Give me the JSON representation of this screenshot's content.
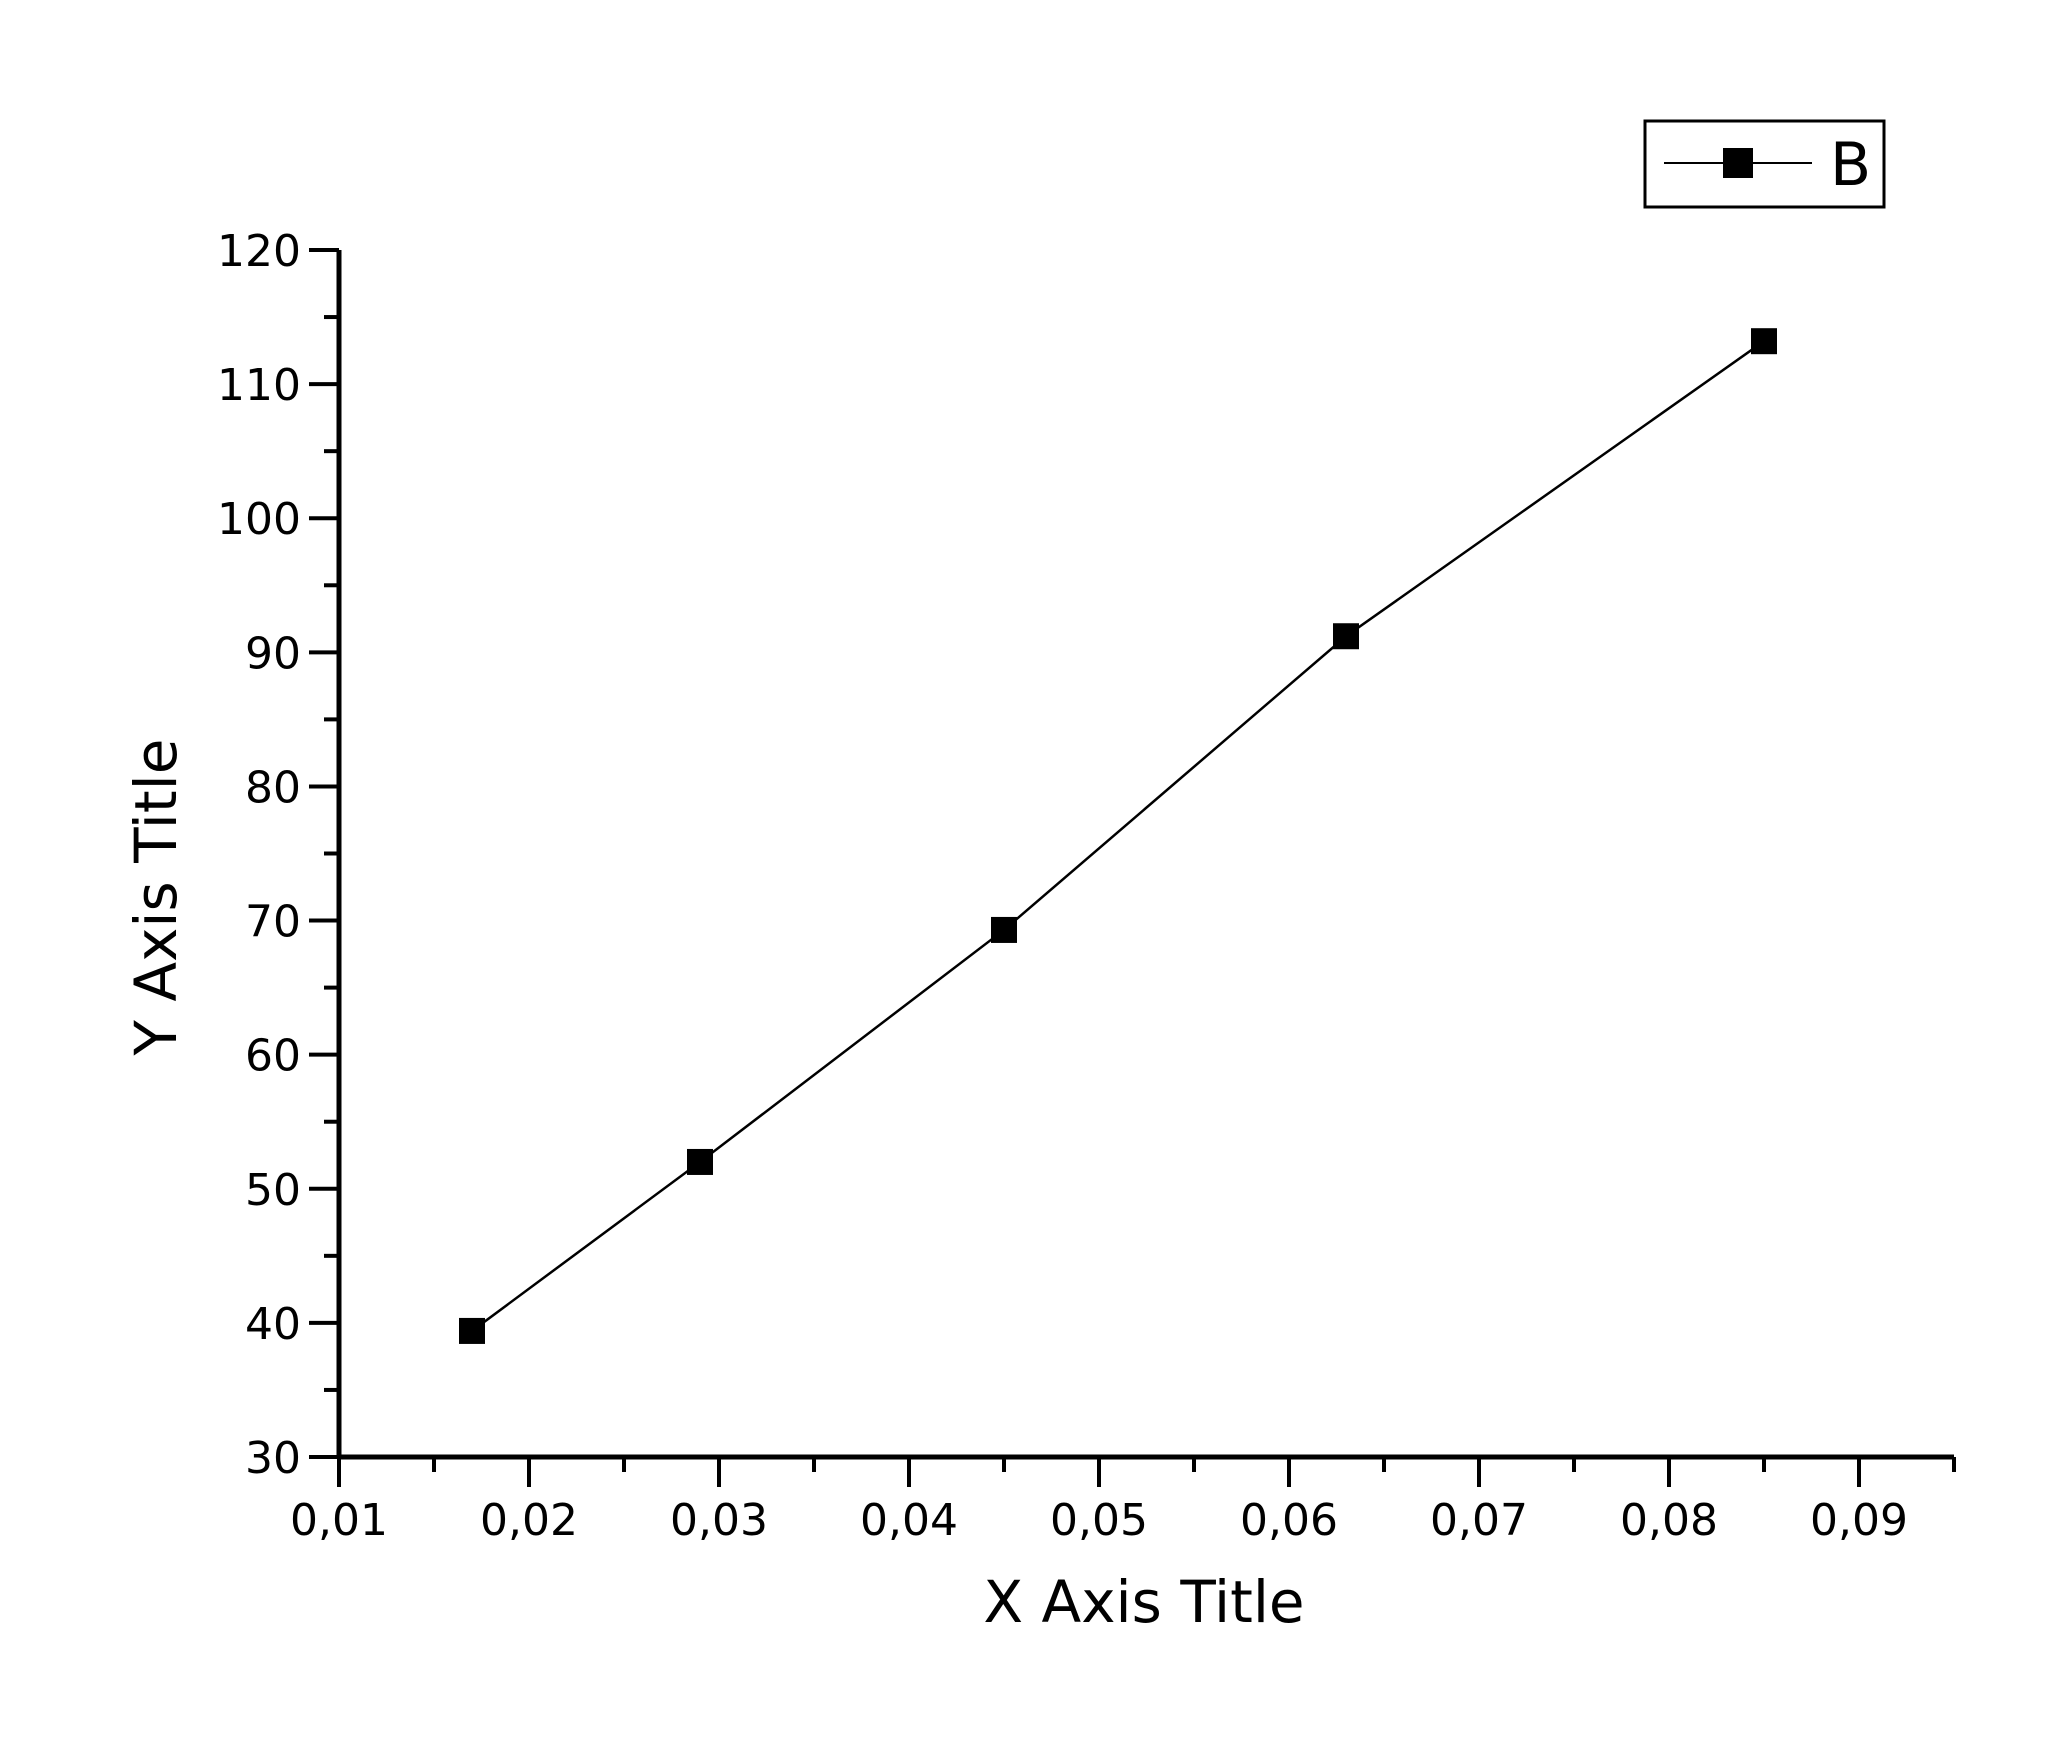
{
  "chart_data": {
    "type": "line",
    "xlabel": "X Axis Title",
    "ylabel": "Y Axis Title",
    "xlim": [
      0.01,
      0.095
    ],
    "ylim": [
      30,
      120
    ],
    "x_ticks": [
      0.01,
      0.02,
      0.03,
      0.04,
      0.05,
      0.06,
      0.07,
      0.08,
      0.09
    ],
    "x_tick_labels": [
      "0,01",
      "0,02",
      "0,03",
      "0,04",
      "0,05",
      "0,06",
      "0,07",
      "0,08",
      "0,09"
    ],
    "y_ticks": [
      30,
      40,
      50,
      60,
      70,
      80,
      90,
      100,
      110,
      120
    ],
    "y_tick_labels": [
      "30",
      "40",
      "50",
      "60",
      "70",
      "80",
      "90",
      "100",
      "110",
      "120"
    ],
    "grid": false,
    "legend_position": "top-right",
    "series": [
      {
        "name": "B",
        "marker": "square",
        "color": "#000000",
        "x": [
          0.017,
          0.029,
          0.045,
          0.063,
          0.085
        ],
        "y": [
          39.4,
          52.0,
          69.3,
          91.2,
          113.2
        ]
      }
    ]
  }
}
